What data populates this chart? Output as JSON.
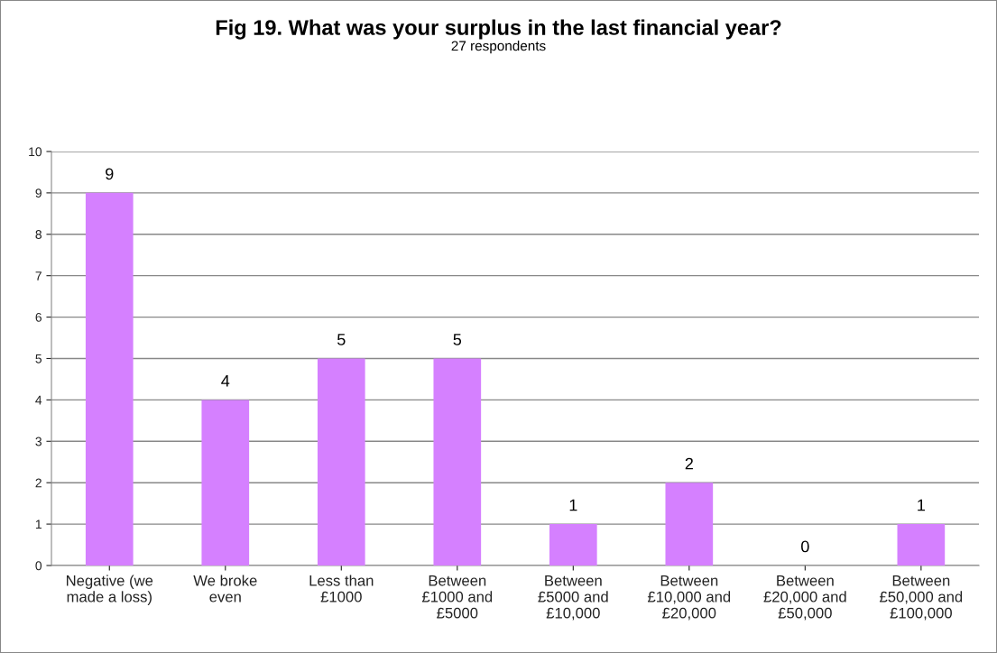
{
  "chart_data": {
    "type": "bar",
    "title": "Fig 19. What was your surplus in the last financial year?",
    "subtitle": "27 respondents",
    "categories": [
      "Negative (we\nmade a loss)",
      "We broke\neven",
      "Less than\n£1000",
      "Between\n£1000 and\n£5000",
      "Between\n£5000 and\n£10,000",
      "Between\n£10,000 and\n£20,000",
      "Between\n£20,000 and\n£50,000",
      "Between\n£50,000 and\n£100,000"
    ],
    "values": [
      9,
      4,
      5,
      5,
      1,
      2,
      0,
      1
    ],
    "color": "#d580ff",
    "ylim": [
      0,
      10
    ],
    "yticks": [
      0,
      1,
      2,
      3,
      4,
      5,
      6,
      7,
      8,
      9,
      10
    ],
    "grid": "y",
    "data_labels": true,
    "legend": false
  }
}
